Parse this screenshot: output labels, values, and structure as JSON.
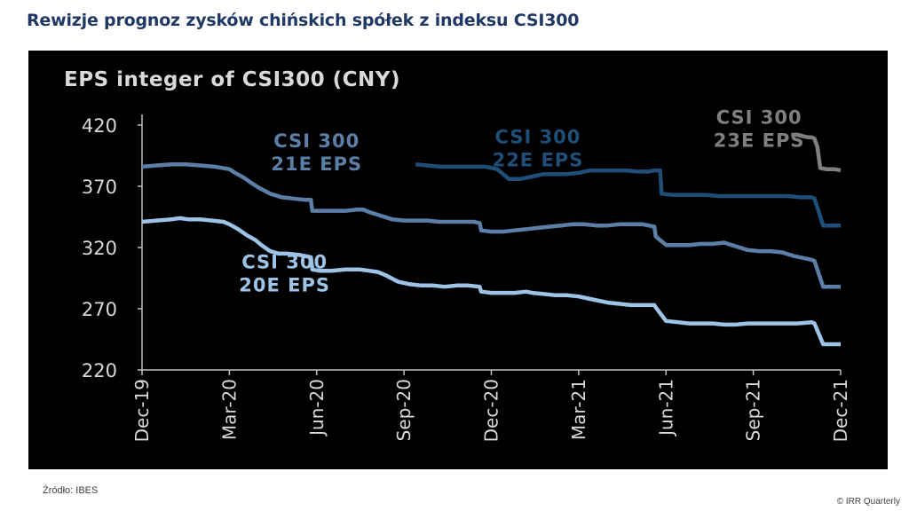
{
  "header": {
    "title": "Rewizje prognoz zysków chińskich spółek z indeksu CSI300"
  },
  "footer": {
    "source": "Źródło: IBES",
    "copyright": "© IRR Quarterly"
  },
  "colors": {
    "background": "#000000",
    "axis": "#bfbfbf",
    "text": "#d9d9d9",
    "title": "#1f3864",
    "series_20e": "#9dc3e6",
    "series_21e": "#5b7fa6",
    "series_22e": "#1f4e79",
    "series_23e": "#7f7f7f"
  },
  "chart_data": {
    "type": "line",
    "title": "EPS integer of CSI300 (CNY)",
    "xlabel": "",
    "ylabel": "",
    "ylim": [
      220,
      420
    ],
    "yticks": [
      420,
      370,
      320,
      270,
      220
    ],
    "xlim": [
      0,
      24
    ],
    "xticks": [
      {
        "label": "Dec-19",
        "value": 0
      },
      {
        "label": "Mar-20",
        "value": 3
      },
      {
        "label": "Jun-20",
        "value": 6
      },
      {
        "label": "Sep-20",
        "value": 9
      },
      {
        "label": "Dec-20",
        "value": 12
      },
      {
        "label": "Mar-21",
        "value": 15
      },
      {
        "label": "Jun-21",
        "value": 18
      },
      {
        "label": "Sep-21",
        "value": 21
      },
      {
        "label": "Dec-21",
        "value": 24
      }
    ],
    "series": [
      {
        "name": "CSI 300 20E EPS",
        "label_lines": [
          "CSI 300",
          "20E EPS"
        ],
        "color": "#9dc3e6",
        "x": [
          0,
          0.5,
          1,
          1.3,
          1.6,
          2,
          2.4,
          2.8,
          3.0,
          3.3,
          3.6,
          3.9,
          4.1,
          4.4,
          4.7,
          5.0,
          5.4,
          5.8,
          5.85,
          6.1,
          6.5,
          7,
          7.5,
          7.8,
          8.1,
          8.4,
          8.8,
          9.2,
          9.6,
          10,
          10.4,
          10.8,
          11.2,
          11.6,
          11.65,
          12,
          12.4,
          12.8,
          13.2,
          13.4,
          13.8,
          14.2,
          14.6,
          15,
          15.4,
          15.8,
          16,
          16.4,
          16.8,
          17.2,
          17.6,
          17.65,
          18,
          18.4,
          18.8,
          19.2,
          19.6,
          20,
          20.4,
          20.8,
          21.2,
          21.6,
          22,
          22.5,
          23,
          23.1,
          23.4,
          24
        ],
        "y": [
          341,
          342,
          343,
          344,
          343,
          343,
          342,
          341,
          339,
          335,
          330,
          326,
          322,
          317,
          315,
          315,
          314,
          312,
          302,
          301,
          301,
          302,
          302,
          301,
          300,
          297,
          292,
          290,
          289,
          289,
          288,
          289,
          289,
          288,
          284,
          283,
          283,
          283,
          284,
          283,
          282,
          281,
          281,
          280,
          278,
          276,
          275,
          274,
          273,
          273,
          273,
          271,
          260,
          259,
          258,
          258,
          258,
          257,
          257,
          258,
          258,
          258,
          258,
          258,
          259,
          258,
          241,
          241
        ]
      },
      {
        "name": "CSI 300 21E EPS",
        "label_lines": [
          "CSI 300",
          "21E EPS"
        ],
        "color": "#5b7fa6",
        "x": [
          0,
          0.5,
          1,
          1.5,
          2,
          2.5,
          3,
          3.2,
          3.5,
          3.8,
          4.0,
          4.4,
          4.8,
          5.2,
          5.6,
          5.8,
          5.85,
          6.2,
          6.6,
          7,
          7.4,
          7.6,
          7.8,
          8.2,
          8.6,
          9,
          9.4,
          9.8,
          10.2,
          10.6,
          11,
          11.4,
          11.6,
          11.65,
          12,
          12.4,
          12.8,
          13.2,
          13.6,
          14,
          14.4,
          14.8,
          15.2,
          15.6,
          16,
          16.4,
          16.8,
          17.2,
          17.6,
          17.65,
          18,
          18.4,
          18.8,
          19.2,
          19.6,
          20,
          20.4,
          20.8,
          21.2,
          21.6,
          22,
          22.4,
          22.8,
          23.0,
          23.1,
          23.4,
          24
        ],
        "y": [
          386,
          387,
          388,
          388,
          387,
          386,
          384,
          381,
          377,
          372,
          369,
          364,
          361,
          360,
          359,
          359,
          350,
          350,
          350,
          350,
          351,
          351,
          349,
          346,
          343,
          342,
          342,
          342,
          341,
          341,
          341,
          341,
          340,
          334,
          333,
          333,
          334,
          335,
          336,
          337,
          338,
          339,
          339,
          338,
          338,
          339,
          339,
          339,
          337,
          329,
          322,
          322,
          322,
          323,
          323,
          324,
          321,
          318,
          317,
          317,
          316,
          313,
          311,
          310,
          309,
          288,
          288
        ]
      },
      {
        "name": "CSI 300 22E EPS",
        "label_lines": [
          "CSI 300",
          "22E EPS"
        ],
        "color": "#1f4e79",
        "x": [
          9.4,
          9.8,
          10.2,
          10.6,
          11,
          11.4,
          11.8,
          12.2,
          12.6,
          13,
          13.4,
          13.8,
          14.2,
          14.6,
          15,
          15.4,
          15.8,
          16.2,
          16.6,
          17,
          17.4,
          17.6,
          17.8,
          17.85,
          18.2,
          18.6,
          19,
          19.4,
          19.8,
          20.2,
          20.6,
          21,
          21.4,
          21.8,
          22.2,
          22.6,
          23.0,
          23.1,
          23.4,
          24
        ],
        "y": [
          388,
          387,
          386,
          386,
          386,
          386,
          386,
          384,
          376,
          376,
          378,
          380,
          380,
          380,
          381,
          383,
          383,
          383,
          383,
          382,
          382,
          383,
          383,
          364,
          363,
          363,
          363,
          363,
          362,
          362,
          362,
          362,
          362,
          362,
          362,
          361,
          361,
          360,
          338,
          338
        ]
      },
      {
        "name": "CSI 300 23E EPS",
        "label_lines": [
          "CSI 300",
          "23E EPS"
        ],
        "color": "#7f7f7f",
        "x": [
          22.3,
          22.5,
          22.7,
          22.9,
          23.0,
          23.1,
          23.2,
          23.3,
          23.5,
          23.8,
          24
        ],
        "y": [
          412,
          412,
          411,
          410,
          410,
          409,
          402,
          385,
          384,
          384,
          383
        ]
      }
    ]
  }
}
